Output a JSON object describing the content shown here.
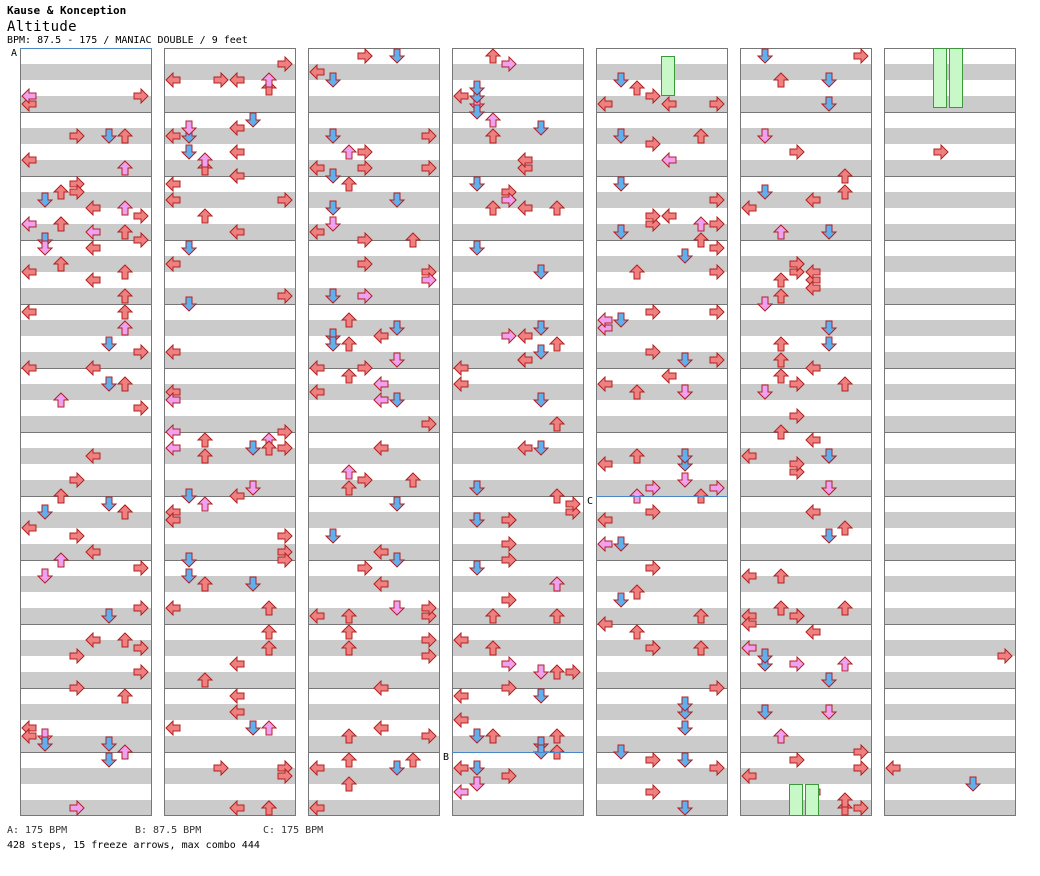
{
  "header": {
    "artist": "Kause & Konception",
    "title": "Altitude",
    "info": "BPM: 87.5 - 175 / MANIAC DOUBLE / 9 feet"
  },
  "chart": {
    "columns": 7,
    "measures_per_column": 12,
    "lanes": 8,
    "colors": {
      "left": "#f08080",
      "down": "#60b0f0",
      "up": "#f08080",
      "right": "#f08080",
      "pink": "#f0a0f0",
      "freeze": "#c8f7c8",
      "band": "#cbcbcb"
    },
    "markers": [
      {
        "label": "A",
        "column": 1,
        "measure": 1
      },
      {
        "label": "B",
        "column": 4,
        "measure": 12
      },
      {
        "label": "C",
        "column": 5,
        "measure": 8
      }
    ]
  },
  "legend": [
    {
      "label": "A",
      "bpm": "175 BPM"
    },
    {
      "label": "B",
      "bpm": "87.5 BPM"
    },
    {
      "label": "C",
      "bpm": "175 BPM"
    }
  ],
  "legend_text": [
    "A: 175 BPM",
    "B: 87.5 BPM",
    "C: 175 BPM"
  ],
  "summary": "428 steps, 15 freeze arrows, max combo 444"
}
